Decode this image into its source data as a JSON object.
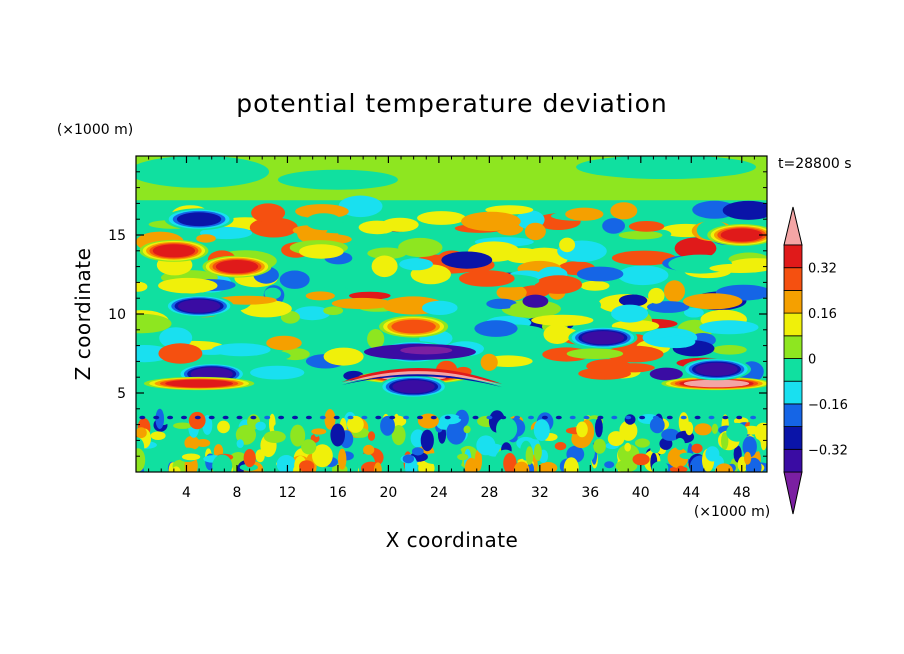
{
  "chart_data": {
    "type": "heatmap",
    "title": "potential temperature deviation",
    "xlabel": "X coordinate",
    "ylabel": "Z coordinate",
    "x_unit": "(×1000 m)",
    "y_unit": "(×1000 m)",
    "time_label": "t=28800 s",
    "xlim": [
      0,
      50
    ],
    "ylim": [
      0,
      20
    ],
    "x_ticks": [
      4,
      8,
      12,
      16,
      20,
      24,
      28,
      32,
      36,
      40,
      44,
      48
    ],
    "x_tick_labels": [
      "4",
      "8",
      "12",
      "16",
      "20",
      "24",
      "28",
      "32",
      "36",
      "40",
      "44",
      "48"
    ],
    "y_ticks": [
      5,
      10,
      15
    ],
    "y_tick_labels": [
      "5",
      "10",
      "15"
    ],
    "colorbar": {
      "levels": [
        -0.4,
        -0.32,
        -0.24,
        -0.16,
        -0.08,
        0,
        0.08,
        0.16,
        0.24,
        0.32,
        0.4
      ],
      "labeled_levels": [
        -0.32,
        -0.16,
        0,
        0.16,
        0.32
      ],
      "labels": [
        "-0.32",
        "-0.16",
        "0",
        "0.16",
        "0.32"
      ],
      "under_color": "#7b1fa2",
      "over_color": "#f4a5a5",
      "colors": [
        "#3a0ca3",
        "#0a14a8",
        "#1565e6",
        "#19e0f0",
        "#10e0a0",
        "#8ee620",
        "#f0f00a",
        "#f5a000",
        "#f55010",
        "#e01a1a"
      ]
    },
    "features": [
      {
        "kind": "warm",
        "x": 22,
        "z": 9.2,
        "value": 0.2
      },
      {
        "kind": "cold",
        "x": 22,
        "z": 7.6,
        "value": -0.35
      },
      {
        "kind": "warm",
        "x": 22,
        "z": 6.0,
        "value": 0.4
      },
      {
        "kind": "cold",
        "x": 22,
        "z": 5.4,
        "value": -0.3
      },
      {
        "kind": "cold",
        "x": 6,
        "z": 6.2,
        "value": -0.35
      },
      {
        "kind": "warm",
        "x": 5,
        "z": 5.6,
        "value": 0.35
      },
      {
        "kind": "warm",
        "x": 46,
        "z": 5.6,
        "value": 0.4
      },
      {
        "kind": "cold",
        "x": 46,
        "z": 6.5,
        "value": -0.3
      },
      {
        "kind": "cold",
        "x": 5,
        "z": 16,
        "value": -0.25
      },
      {
        "kind": "warm",
        "x": 3,
        "z": 14,
        "value": 0.3
      },
      {
        "kind": "warm",
        "x": 8,
        "z": 13,
        "value": 0.3
      },
      {
        "kind": "warm",
        "x": 48,
        "z": 15,
        "value": 0.3
      },
      {
        "kind": "cold",
        "x": 5,
        "z": 10.5,
        "value": -0.3
      },
      {
        "kind": "cold",
        "x": 37,
        "z": 8.5,
        "value": -0.3
      }
    ]
  },
  "colors": {
    "background": "#ffffff",
    "axis": "#000000"
  }
}
